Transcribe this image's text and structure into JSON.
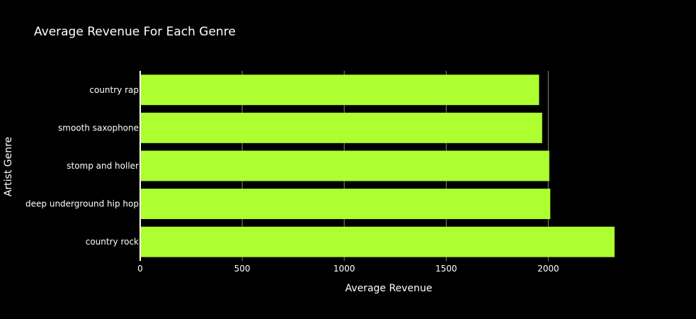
{
  "chart_data": {
    "type": "bar",
    "orientation": "horizontal",
    "title": "Average Revenue For Each Genre",
    "xlabel": "Average Revenue",
    "ylabel": "Artist Genre",
    "categories": [
      "country rap",
      "smooth saxophone",
      "stomp and holler",
      "deep underground hip hop",
      "country rock"
    ],
    "values": [
      1955,
      1970,
      2005,
      2010,
      2325
    ],
    "xlim": [
      0,
      2325
    ],
    "x_ticks": [
      0,
      500,
      1000,
      1500,
      2000
    ],
    "x_tick_labels": [
      "0",
      "500",
      "1000",
      "1500",
      "2000"
    ],
    "grid": "vertical",
    "legend": "none",
    "bar_color": "#adff2f",
    "background_color": "#000000",
    "grid_color": "#888888",
    "text_color": "#ffffff"
  }
}
